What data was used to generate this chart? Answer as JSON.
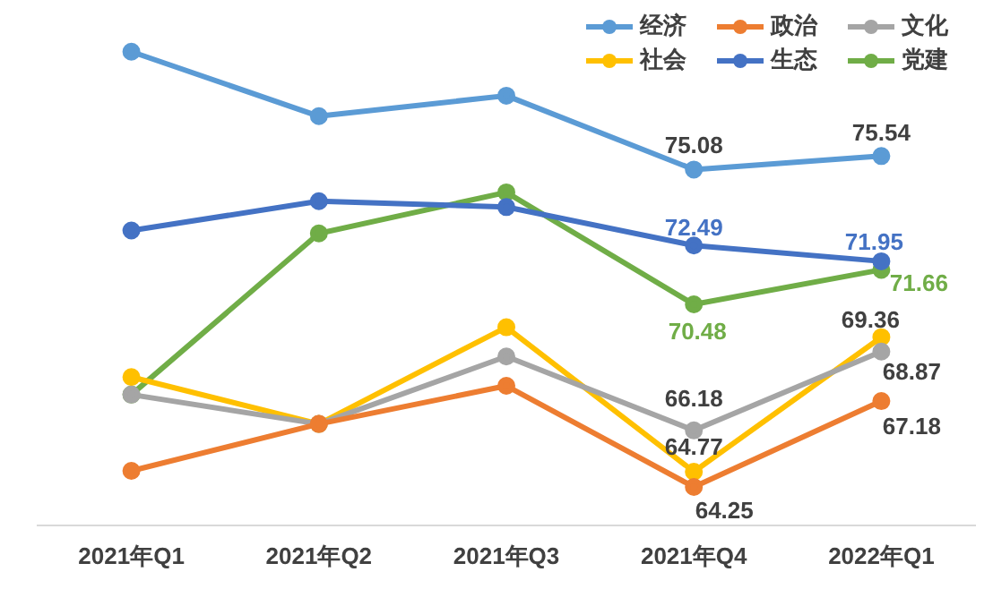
{
  "chart_data": {
    "type": "line",
    "categories": [
      "2021年Q1",
      "2021年Q2",
      "2021年Q3",
      "2021年Q4",
      "2022年Q1"
    ],
    "legend": "top right",
    "marker": "circle",
    "line_style": "solid",
    "grid": false,
    "tick_labels": "x",
    "series": [
      {
        "name": "经济",
        "color": "#5b9bd5",
        "values": [
          79.1,
          76.9,
          77.6,
          75.08,
          75.54
        ],
        "value_labels": [
          null,
          null,
          null,
          "75.08",
          "75.54"
        ]
      },
      {
        "name": "政治",
        "color": "#ed7d31",
        "values": [
          64.8,
          66.4,
          67.7,
          64.25,
          67.18
        ],
        "value_labels": [
          null,
          null,
          null,
          "64.25",
          "67.18"
        ]
      },
      {
        "name": "文化",
        "color": "#a5a5a5",
        "values": [
          67.4,
          66.4,
          68.7,
          66.18,
          68.87
        ],
        "value_labels": [
          null,
          null,
          null,
          "66.18",
          "68.87"
        ]
      },
      {
        "name": "社会",
        "color": "#ffc000",
        "values": [
          68.0,
          66.4,
          69.7,
          64.77,
          69.36
        ],
        "value_labels": [
          null,
          null,
          null,
          "64.77",
          "69.36"
        ]
      },
      {
        "name": "生态",
        "color": "#4472c4",
        "values": [
          73.0,
          74.0,
          73.8,
          72.49,
          71.95
        ],
        "value_labels": [
          null,
          null,
          null,
          "72.49",
          "71.95"
        ]
      },
      {
        "name": "党建",
        "color": "#70ad47",
        "values": [
          67.4,
          72.9,
          74.3,
          70.48,
          71.66
        ],
        "value_labels": [
          null,
          null,
          null,
          "70.48",
          "71.66"
        ]
      }
    ]
  }
}
